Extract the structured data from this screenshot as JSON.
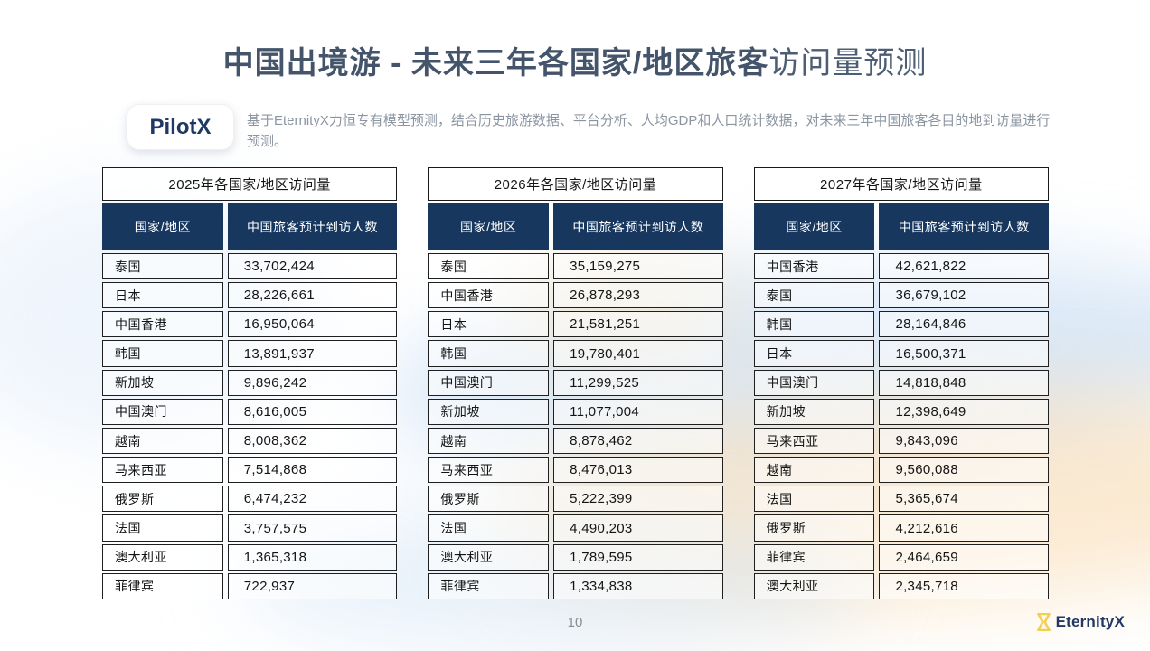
{
  "slide": {
    "title_bold": "中国出境游 - 未来三年各国家/地区旅客",
    "title_light": "访问量预测"
  },
  "pilot": {
    "badge_label": "PilotX",
    "description": "基于EternityX力恒专有模型预测，结合历史旅游数据、平台分析、人均GDP和人口统计数据，对未来三年中国旅客各目的地到访量进行预测。"
  },
  "tables": [
    {
      "title": "2025年各国家/地区访问量",
      "columns": [
        "国家/地区",
        "中国旅客预计到访人数"
      ],
      "rows": [
        [
          "泰国",
          "33,702,424"
        ],
        [
          "日本",
          "28,226,661"
        ],
        [
          "中国香港",
          "16,950,064"
        ],
        [
          "韩国",
          "13,891,937"
        ],
        [
          "新加坡",
          "9,896,242"
        ],
        [
          "中国澳门",
          "8,616,005"
        ],
        [
          "越南",
          "8,008,362"
        ],
        [
          "马来西亚",
          "7,514,868"
        ],
        [
          "俄罗斯",
          "6,474,232"
        ],
        [
          "法国",
          "3,757,575"
        ],
        [
          "澳大利亚",
          "1,365,318"
        ],
        [
          "菲律宾",
          "722,937"
        ]
      ]
    },
    {
      "title": "2026年各国家/地区访问量",
      "columns": [
        "国家/地区",
        "中国旅客预计到访人数"
      ],
      "rows": [
        [
          "泰国",
          "35,159,275"
        ],
        [
          "中国香港",
          "26,878,293"
        ],
        [
          "日本",
          "21,581,251"
        ],
        [
          "韩国",
          "19,780,401"
        ],
        [
          "中国澳门",
          "11,299,525"
        ],
        [
          "新加坡",
          "11,077,004"
        ],
        [
          "越南",
          "8,878,462"
        ],
        [
          "马来西亚",
          "8,476,013"
        ],
        [
          "俄罗斯",
          "5,222,399"
        ],
        [
          "法国",
          "4,490,203"
        ],
        [
          "澳大利亚",
          "1,789,595"
        ],
        [
          "菲律宾",
          "1,334,838"
        ]
      ]
    },
    {
      "title": "2027年各国家/地区访问量",
      "columns": [
        "国家/地区",
        "中国旅客预计到访人数"
      ],
      "rows": [
        [
          "中国香港",
          "42,621,822"
        ],
        [
          "泰国",
          "36,679,102"
        ],
        [
          "韩国",
          "28,164,846"
        ],
        [
          "日本",
          "16,500,371"
        ],
        [
          "中国澳门",
          "14,818,848"
        ],
        [
          "新加坡",
          "12,398,649"
        ],
        [
          "马来西亚",
          "9,843,096"
        ],
        [
          "越南",
          "9,560,088"
        ],
        [
          "法国",
          "5,365,674"
        ],
        [
          "俄罗斯",
          "4,212,616"
        ],
        [
          "菲律宾",
          "2,464,659"
        ],
        [
          "澳大利亚",
          "2,345,718"
        ]
      ]
    }
  ],
  "footer": {
    "page_number": "10",
    "logo_text": "EternityX"
  },
  "colors": {
    "header_navy": "#17375e",
    "title_slate": "#44546a",
    "brand_navy": "#203864",
    "logo_yellow": "#f2cf4e",
    "wave_blue": "#bcd6f0",
    "wave_orange": "#f8dcb4"
  }
}
